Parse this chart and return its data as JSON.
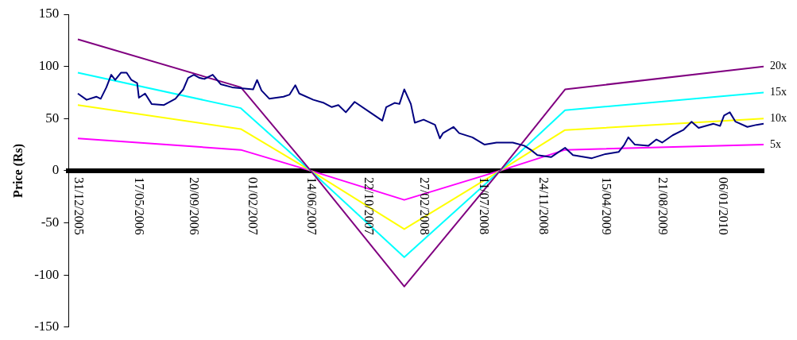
{
  "chart_data": {
    "type": "line",
    "ylabel": "Price (Rs)",
    "xlim": [
      "2005-12-10",
      "2010-04-10"
    ],
    "xticks": [
      {
        "value": "2005-12-31",
        "label": "31/12/2005"
      },
      {
        "value": "2006-05-17",
        "label": "17/05/2006"
      },
      {
        "value": "2006-09-20",
        "label": "20/09/2006"
      },
      {
        "value": "2007-02-01",
        "label": "01/02/2007"
      },
      {
        "value": "2007-06-14",
        "label": "14/06/2007"
      },
      {
        "value": "2007-10-22",
        "label": "22/10/2007"
      },
      {
        "value": "2008-02-27",
        "label": "27/02/2008"
      },
      {
        "value": "2008-07-11",
        "label": "11/07/2008"
      },
      {
        "value": "2008-11-24",
        "label": "24/11/2008"
      },
      {
        "value": "2009-04-15",
        "label": "15/04/2009"
      },
      {
        "value": "2009-08-21",
        "label": "21/08/2009"
      },
      {
        "value": "2010-01-06",
        "label": "06/01/2010"
      }
    ],
    "ylim": [
      -150,
      150
    ],
    "yticks": [
      -150,
      -100,
      -50,
      0,
      50,
      100,
      150
    ],
    "marker": "none",
    "line_style": "solid",
    "series": [
      {
        "color": "#000080",
        "x": [
          "2005-12-31",
          "2006-01-20",
          "2006-02-11",
          "2006-02-21",
          "2006-03-06",
          "2006-03-17",
          "2006-03-26",
          "2006-04-08",
          "2006-04-21",
          "2006-05-02",
          "2006-05-15",
          "2006-05-19",
          "2006-06-02",
          "2006-06-17",
          "2006-07-15",
          "2006-08-10",
          "2006-08-28",
          "2006-09-08",
          "2006-09-21",
          "2006-10-04",
          "2006-10-15",
          "2006-11-03",
          "2006-11-21",
          "2006-12-17",
          "2007-01-10",
          "2007-02-03",
          "2007-02-12",
          "2007-02-22",
          "2007-03-12",
          "2007-04-13",
          "2007-04-27",
          "2007-05-10",
          "2007-05-19",
          "2007-06-20",
          "2007-07-14",
          "2007-08-01",
          "2007-08-16",
          "2007-09-02",
          "2007-09-22",
          "2007-10-27",
          "2007-11-24",
          "2007-12-03",
          "2007-12-22",
          "2008-01-02",
          "2008-01-13",
          "2008-01-28",
          "2008-02-06",
          "2008-02-26",
          "2008-03-23",
          "2008-04-03",
          "2008-04-10",
          "2008-05-04",
          "2008-05-17",
          "2008-06-16",
          "2008-07-14",
          "2008-08-10",
          "2008-09-16",
          "2008-10-12",
          "2008-10-27",
          "2008-11-11",
          "2008-12-12",
          "2009-01-13",
          "2009-01-31",
          "2009-03-15",
          "2009-04-15",
          "2009-05-15",
          "2009-05-28",
          "2009-06-06",
          "2009-06-21",
          "2009-07-22",
          "2009-08-09",
          "2009-08-22",
          "2009-09-15",
          "2009-10-09",
          "2009-10-28",
          "2009-11-13",
          "2009-12-17",
          "2010-01-01",
          "2010-01-10",
          "2010-01-23",
          "2010-02-05",
          "2010-03-04",
          "2010-03-25",
          "2010-04-10"
        ],
        "values": [
          74,
          68,
          71,
          69,
          80,
          92,
          87,
          94,
          94,
          87,
          84,
          70,
          74,
          64,
          63,
          69,
          78,
          89,
          92,
          89,
          88,
          92,
          83,
          80,
          79,
          78,
          87,
          77,
          69,
          71,
          73,
          82,
          74,
          68,
          65,
          61,
          63,
          56,
          66,
          56,
          48,
          61,
          65,
          64,
          78,
          64,
          46,
          49,
          44,
          31,
          36,
          42,
          36,
          32,
          25,
          27,
          27,
          24,
          20,
          15,
          13,
          22,
          15,
          12,
          16,
          18,
          25,
          32,
          25,
          24,
          30,
          27,
          34,
          39,
          47,
          41,
          45,
          43,
          53,
          56,
          47,
          42,
          44,
          45
        ]
      },
      {
        "name": "20x",
        "color": "#800080",
        "x": [
          "2005-12-31",
          "2007-01-06",
          "2007-06-14",
          "2008-01-13",
          "2008-08-18",
          "2009-01-13",
          "2010-04-10"
        ],
        "values": [
          126,
          80,
          0,
          -111,
          0,
          78,
          100
        ]
      },
      {
        "name": "15x",
        "color": "#00ffff",
        "x": [
          "2005-12-31",
          "2007-01-06",
          "2007-06-14",
          "2008-01-13",
          "2008-08-18",
          "2009-01-13",
          "2010-04-10"
        ],
        "values": [
          94,
          60,
          0,
          -83,
          0,
          58,
          75
        ]
      },
      {
        "name": "10x",
        "color": "#ffff00",
        "x": [
          "2005-12-31",
          "2007-01-06",
          "2007-06-14",
          "2008-01-13",
          "2008-08-18",
          "2009-01-13",
          "2010-04-10"
        ],
        "values": [
          63,
          40,
          0,
          -56,
          0,
          39,
          50
        ]
      },
      {
        "name": "5x",
        "color": "#ff00ff",
        "x": [
          "2005-12-31",
          "2007-01-06",
          "2007-06-14",
          "2008-01-13",
          "2008-08-18",
          "2009-01-13",
          "2010-04-10"
        ],
        "values": [
          31,
          20,
          0,
          -28,
          0,
          20,
          25
        ]
      }
    ]
  }
}
